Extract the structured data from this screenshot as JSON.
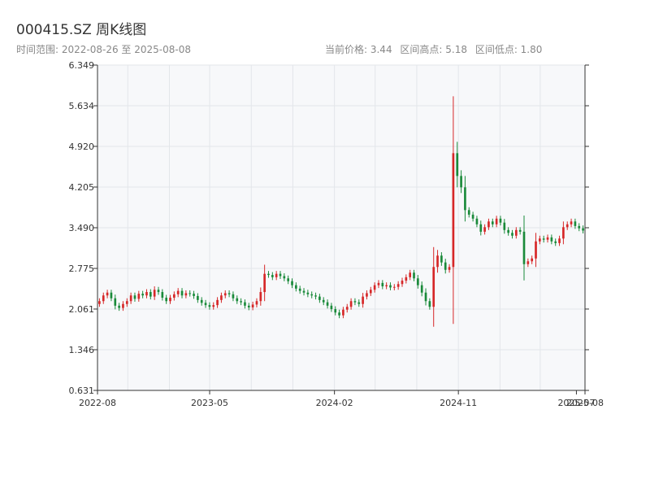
{
  "header": {
    "title": "000415.SZ 周K线图",
    "range_label": "时间范围: 2022-08-26 至 2025-08-08",
    "current_price": "当前价格: 3.44",
    "range_high": "区间高点: 5.18",
    "range_low": "区间低点: 1.80"
  },
  "colors": {
    "up": "#d62728",
    "down": "#1a8a3a",
    "grid": "#e3e6ea",
    "plot_bg": "#f7f8fa",
    "axis": "#333333"
  },
  "chart_data": {
    "type": "candlestick",
    "ylim": [
      0.631,
      6.349
    ],
    "y_ticks": [
      "0.631",
      "1.346",
      "2.061",
      "2.775",
      "3.490",
      "4.205",
      "4.920",
      "5.634",
      "6.349"
    ],
    "x_range": [
      "2022-08-26",
      "2025-08-08"
    ],
    "x_ticks": [
      {
        "date": "2022-08-01",
        "label": "2022-08"
      },
      {
        "date": "2023-05-01",
        "label": "2023-05"
      },
      {
        "date": "2024-02-01",
        "label": "2024-02"
      },
      {
        "date": "2024-11-01",
        "label": "2024-11"
      },
      {
        "date": "2025-07-20",
        "label": "2025-07"
      },
      {
        "date": "2025-08-08",
        "label": "2025-08"
      }
    ],
    "grid": true,
    "close": [
      2.2,
      2.3,
      2.35,
      2.25,
      2.12,
      2.08,
      2.15,
      2.2,
      2.3,
      2.24,
      2.33,
      2.3,
      2.36,
      2.28,
      2.4,
      2.36,
      2.26,
      2.2,
      2.26,
      2.32,
      2.38,
      2.3,
      2.34,
      2.33,
      2.29,
      2.22,
      2.17,
      2.13,
      2.1,
      2.13,
      2.22,
      2.3,
      2.34,
      2.32,
      2.25,
      2.2,
      2.18,
      2.12,
      2.09,
      2.14,
      2.2,
      2.36,
      2.68,
      2.66,
      2.62,
      2.68,
      2.64,
      2.6,
      2.55,
      2.48,
      2.42,
      2.38,
      2.35,
      2.32,
      2.3,
      2.28,
      2.22,
      2.18,
      2.12,
      2.06,
      2.0,
      1.95,
      2.05,
      2.1,
      2.2,
      2.18,
      2.15,
      2.28,
      2.34,
      2.4,
      2.48,
      2.52,
      2.46,
      2.48,
      2.44,
      2.45,
      2.5,
      2.56,
      2.62,
      2.7,
      2.6,
      2.48,
      2.35,
      2.2,
      2.1,
      2.8,
      3.0,
      2.88,
      2.75,
      2.8,
      4.8,
      4.4,
      4.2,
      3.8,
      3.72,
      3.65,
      3.55,
      3.42,
      3.5,
      3.6,
      3.55,
      3.65,
      3.58,
      3.45,
      3.4,
      3.35,
      3.45,
      3.42,
      2.85,
      2.9,
      2.95,
      3.25,
      3.3,
      3.28,
      3.32,
      3.25,
      3.22,
      3.3,
      3.5,
      3.55,
      3.6,
      3.52,
      3.48,
      3.44
    ]
  }
}
